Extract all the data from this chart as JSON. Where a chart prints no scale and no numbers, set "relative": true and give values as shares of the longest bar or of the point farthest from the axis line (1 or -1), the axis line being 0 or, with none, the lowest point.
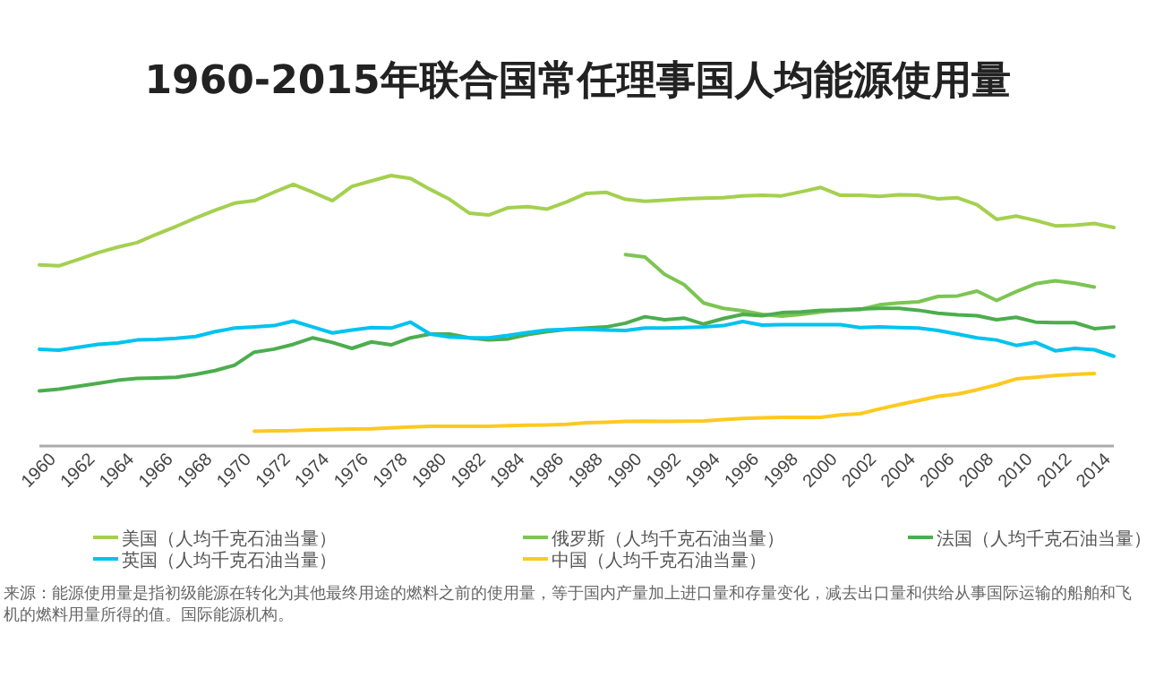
{
  "chart_data": {
    "type": "line",
    "title": "1960-2015年联合国常任理事国人均能源使用量",
    "relative": true,
    "legend": "bottom",
    "grid": false,
    "categories": [
      "1960",
      null,
      "1962",
      null,
      "1964",
      null,
      "1966",
      null,
      "1968",
      null,
      "1970",
      null,
      "1972",
      null,
      "1974",
      null,
      "1976",
      null,
      "1978",
      null,
      "1980",
      null,
      "1982",
      null,
      "1984",
      null,
      "1986",
      null,
      "1988",
      null,
      "1990",
      null,
      "1992",
      null,
      "1994",
      null,
      "1996",
      null,
      "1998",
      null,
      "2000",
      null,
      "2002",
      null,
      "2004",
      null,
      "2006",
      null,
      "2008",
      null,
      "2010",
      null,
      "2012",
      null,
      "2014",
      null
    ],
    "series": [
      {
        "name": "美国（人均千克石油当量）",
        "color": "#a4d04f",
        "values": [
          0.67,
          0.666,
          0.69,
          0.715,
          0.735,
          0.752,
          0.783,
          0.812,
          0.843,
          0.872,
          0.898,
          0.907,
          0.938,
          0.967,
          0.938,
          0.907,
          0.96,
          0.98,
          1,
          0.989,
          0.949,
          0.912,
          0.861,
          0.854,
          0.881,
          0.885,
          0.876,
          0.903,
          0.934,
          0.938,
          0.912,
          0.905,
          0.909,
          0.914,
          0.916,
          0.918,
          0.925,
          0.927,
          0.925,
          0.94,
          0.956,
          0.927,
          0.927,
          0.923,
          0.929,
          0.927,
          0.914,
          0.918,
          0.892,
          0.838,
          0.85,
          0.834,
          0.814,
          0.816,
          0.823,
          0.808
        ]
      },
      {
        "name": "俄罗斯（人均千克石油当量）",
        "color": "#7cc552",
        "values": [
          null,
          null,
          null,
          null,
          null,
          null,
          null,
          null,
          null,
          null,
          null,
          null,
          null,
          null,
          null,
          null,
          null,
          null,
          null,
          null,
          null,
          null,
          null,
          null,
          null,
          null,
          null,
          null,
          null,
          null,
          0.708,
          0.699,
          0.635,
          0.597,
          0.529,
          0.509,
          0.5,
          0.487,
          0.48,
          0.487,
          0.496,
          0.504,
          0.504,
          0.522,
          0.529,
          0.533,
          0.553,
          0.555,
          0.573,
          0.538,
          0.571,
          0.6,
          0.611,
          0.602,
          0.588,
          null
        ]
      },
      {
        "name": "法国（人均千克石油当量）",
        "color": "#4cad4e",
        "values": [
          0.204,
          0.21,
          0.221,
          0.232,
          0.243,
          0.25,
          0.252,
          0.254,
          0.265,
          0.279,
          0.299,
          0.347,
          0.358,
          0.376,
          0.4,
          0.383,
          0.361,
          0.385,
          0.374,
          0.4,
          0.414,
          0.414,
          0.4,
          0.392,
          0.396,
          0.412,
          0.423,
          0.431,
          0.436,
          0.44,
          0.454,
          0.478,
          0.467,
          0.473,
          0.451,
          0.471,
          0.487,
          0.482,
          0.493,
          0.496,
          0.502,
          0.502,
          0.507,
          0.509,
          0.509,
          0.502,
          0.491,
          0.485,
          0.482,
          0.467,
          0.476,
          0.458,
          0.456,
          0.456,
          0.434,
          0.44
        ]
      },
      {
        "name": "英国（人均千克石油当量）",
        "color": "#00c3ee",
        "values": [
          0.358,
          0.354,
          0.365,
          0.376,
          0.381,
          0.392,
          0.394,
          0.398,
          0.405,
          0.423,
          0.436,
          0.44,
          0.445,
          0.462,
          0.44,
          0.418,
          0.429,
          0.438,
          0.436,
          0.458,
          0.414,
          0.403,
          0.4,
          0.4,
          0.409,
          0.42,
          0.429,
          0.431,
          0.431,
          0.429,
          0.427,
          0.436,
          0.436,
          0.438,
          0.44,
          0.445,
          0.46,
          0.447,
          0.449,
          0.449,
          0.449,
          0.449,
          0.438,
          0.44,
          0.438,
          0.436,
          0.427,
          0.414,
          0.4,
          0.392,
          0.372,
          0.383,
          0.352,
          0.361,
          0.356,
          0.332
        ]
      },
      {
        "name": "中国（人均千克石油当量）",
        "color": "#fec920",
        "values": [
          null,
          null,
          null,
          null,
          null,
          null,
          null,
          null,
          null,
          null,
          null,
          0.055,
          0.056,
          0.057,
          0.06,
          0.061,
          0.063,
          0.064,
          0.067,
          0.07,
          0.073,
          0.073,
          0.073,
          0.073,
          0.075,
          0.077,
          0.078,
          0.08,
          0.086,
          0.088,
          0.091,
          0.092,
          0.091,
          0.092,
          0.093,
          0.098,
          0.102,
          0.104,
          0.106,
          0.106,
          0.106,
          0.115,
          0.119,
          0.137,
          0.153,
          0.168,
          0.184,
          0.192,
          0.208,
          0.226,
          0.248,
          0.254,
          0.261,
          0.265,
          0.268,
          null
        ]
      }
    ],
    "annotations": [
      "来源：能源使用量是指初级能源在转化为其他最终用途的燃料之前的使用量，等于国内产量加上进口量和存量变化，减去出口量和供给从事国际运输的船舶和飞机的燃料用量所得的值。国际能源机构。"
    ]
  }
}
